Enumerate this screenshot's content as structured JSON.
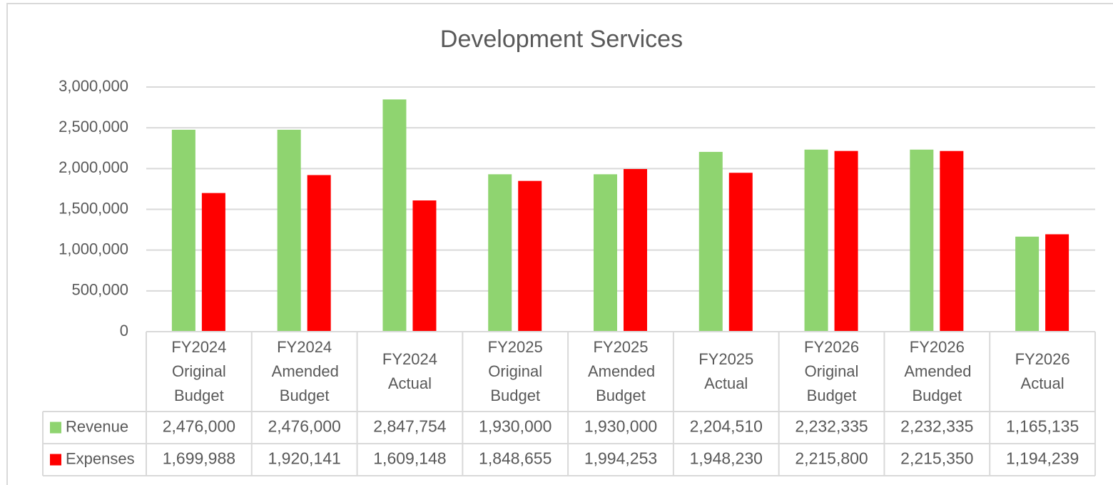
{
  "chart_data": {
    "type": "bar",
    "title": "Development Services",
    "categories": [
      "FY2024 Original Budget",
      "FY2024 Amended Budget",
      "FY2024 Actual",
      "FY2025 Original Budget",
      "FY2025 Amended Budget",
      "FY2025 Actual",
      "FY2026 Original Budget",
      "FY2026 Amended Budget",
      "FY2026 Actual"
    ],
    "series": [
      {
        "name": "Revenue",
        "color": "#8fd470",
        "values": [
          2476000,
          2476000,
          2847754,
          1930000,
          1930000,
          2204510,
          2232335,
          2232335,
          1165135
        ],
        "value_labels": [
          "2,476,000",
          "2,476,000",
          "2,847,754",
          "1,930,000",
          "1,930,000",
          "2,204,510",
          "2,232,335",
          "2,232,335",
          "1,165,135"
        ]
      },
      {
        "name": "Expenses",
        "color": "#ff0000",
        "values": [
          1699988,
          1920141,
          1609148,
          1848655,
          1994253,
          1948230,
          2215800,
          2215350,
          1194239
        ],
        "value_labels": [
          "1,699,988",
          "1,920,141",
          "1,609,148",
          "1,848,655",
          "1,994,253",
          "1,948,230",
          "2,215,800",
          "2,215,350",
          "1,194,239"
        ]
      }
    ],
    "ylim": [
      0,
      3000000
    ],
    "yticks": [
      0,
      {
        "value": 500000,
        "label": "500,000"
      },
      {
        "value": 1000000,
        "label": "1,000,000"
      },
      {
        "value": 1500000,
        "label": "1,500,000"
      },
      {
        "value": 2000000,
        "label": "2,000,000"
      },
      {
        "value": 2500000,
        "label": "2,500,000"
      },
      {
        "value": 3000000,
        "label": "3,000,000"
      }
    ],
    "grid": true
  }
}
